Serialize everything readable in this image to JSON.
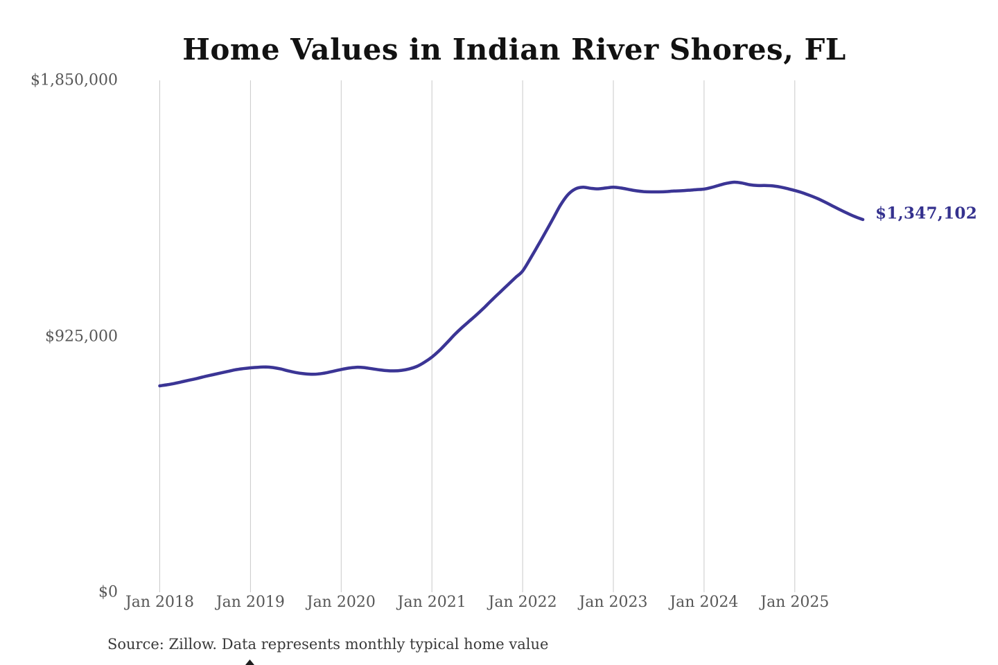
{
  "chart_data": {
    "type": "line",
    "title": "Home Values in Indian River Shores, FL",
    "xlabel": "",
    "ylabel": "",
    "ylim": [
      0,
      1850000
    ],
    "grid": "vertical-only",
    "legend": "none",
    "line_color": "#3b3595",
    "end_label": "$1,347,102",
    "end_value": 1347102,
    "y_ticks": [
      {
        "label": "$1,850,000",
        "value": 1850000
      },
      {
        "label": "$925,000",
        "value": 925000
      },
      {
        "label": "$0",
        "value": 0
      }
    ],
    "x_tick_labels": [
      "Jan 2018",
      "Jan 2019",
      "Jan 2020",
      "Jan 2021",
      "Jan 2022",
      "Jan 2023",
      "Jan 2024",
      "Jan 2025"
    ],
    "x": [
      "2018-01",
      "2018-02",
      "2018-03",
      "2018-04",
      "2018-05",
      "2018-06",
      "2018-07",
      "2018-08",
      "2018-09",
      "2018-10",
      "2018-11",
      "2018-12",
      "2019-01",
      "2019-02",
      "2019-03",
      "2019-04",
      "2019-05",
      "2019-06",
      "2019-07",
      "2019-08",
      "2019-09",
      "2019-10",
      "2019-11",
      "2019-12",
      "2020-01",
      "2020-02",
      "2020-03",
      "2020-04",
      "2020-05",
      "2020-06",
      "2020-07",
      "2020-08",
      "2020-09",
      "2020-10",
      "2020-11",
      "2020-12",
      "2021-01",
      "2021-02",
      "2021-03",
      "2021-04",
      "2021-05",
      "2021-06",
      "2021-07",
      "2021-08",
      "2021-09",
      "2021-10",
      "2021-11",
      "2021-12",
      "2022-01",
      "2022-02",
      "2022-03",
      "2022-04",
      "2022-05",
      "2022-06",
      "2022-07",
      "2022-08",
      "2022-09",
      "2022-10",
      "2022-11",
      "2022-12",
      "2023-01",
      "2023-02",
      "2023-03",
      "2023-04",
      "2023-05",
      "2023-06",
      "2023-07",
      "2023-08",
      "2023-09",
      "2023-10",
      "2023-11",
      "2023-12",
      "2024-01",
      "2024-02",
      "2024-03",
      "2024-04",
      "2024-05",
      "2024-06",
      "2024-07",
      "2024-08",
      "2024-09",
      "2024-10",
      "2024-11",
      "2024-12",
      "2025-01",
      "2025-02",
      "2025-03",
      "2025-04",
      "2025-05",
      "2025-06",
      "2025-07",
      "2025-08",
      "2025-09",
      "2025-10"
    ],
    "values": [
      746000,
      750000,
      755000,
      761000,
      767000,
      773000,
      780000,
      786000,
      792000,
      798000,
      804000,
      808000,
      811000,
      813000,
      814000,
      812000,
      807000,
      800000,
      794000,
      790000,
      788000,
      789000,
      793000,
      799000,
      805000,
      810000,
      813000,
      812000,
      808000,
      804000,
      801000,
      800000,
      802000,
      807000,
      816000,
      831000,
      850000,
      874000,
      902000,
      931000,
      957000,
      981000,
      1005000,
      1031000,
      1058000,
      1084000,
      1110000,
      1136000,
      1161000,
      1205000,
      1252000,
      1300000,
      1349000,
      1399000,
      1437000,
      1458000,
      1464000,
      1460000,
      1458000,
      1461000,
      1464000,
      1461000,
      1456000,
      1451000,
      1448000,
      1447000,
      1447000,
      1448000,
      1450000,
      1451000,
      1453000,
      1455000,
      1457000,
      1463000,
      1471000,
      1478000,
      1482000,
      1479000,
      1473000,
      1470000,
      1470000,
      1469000,
      1465000,
      1459000,
      1452000,
      1444000,
      1434000,
      1423000,
      1410000,
      1396000,
      1382000,
      1369000,
      1357000,
      1347102
    ],
    "source_note": "Source: Zillow. Data represents monthly typical home value"
  }
}
